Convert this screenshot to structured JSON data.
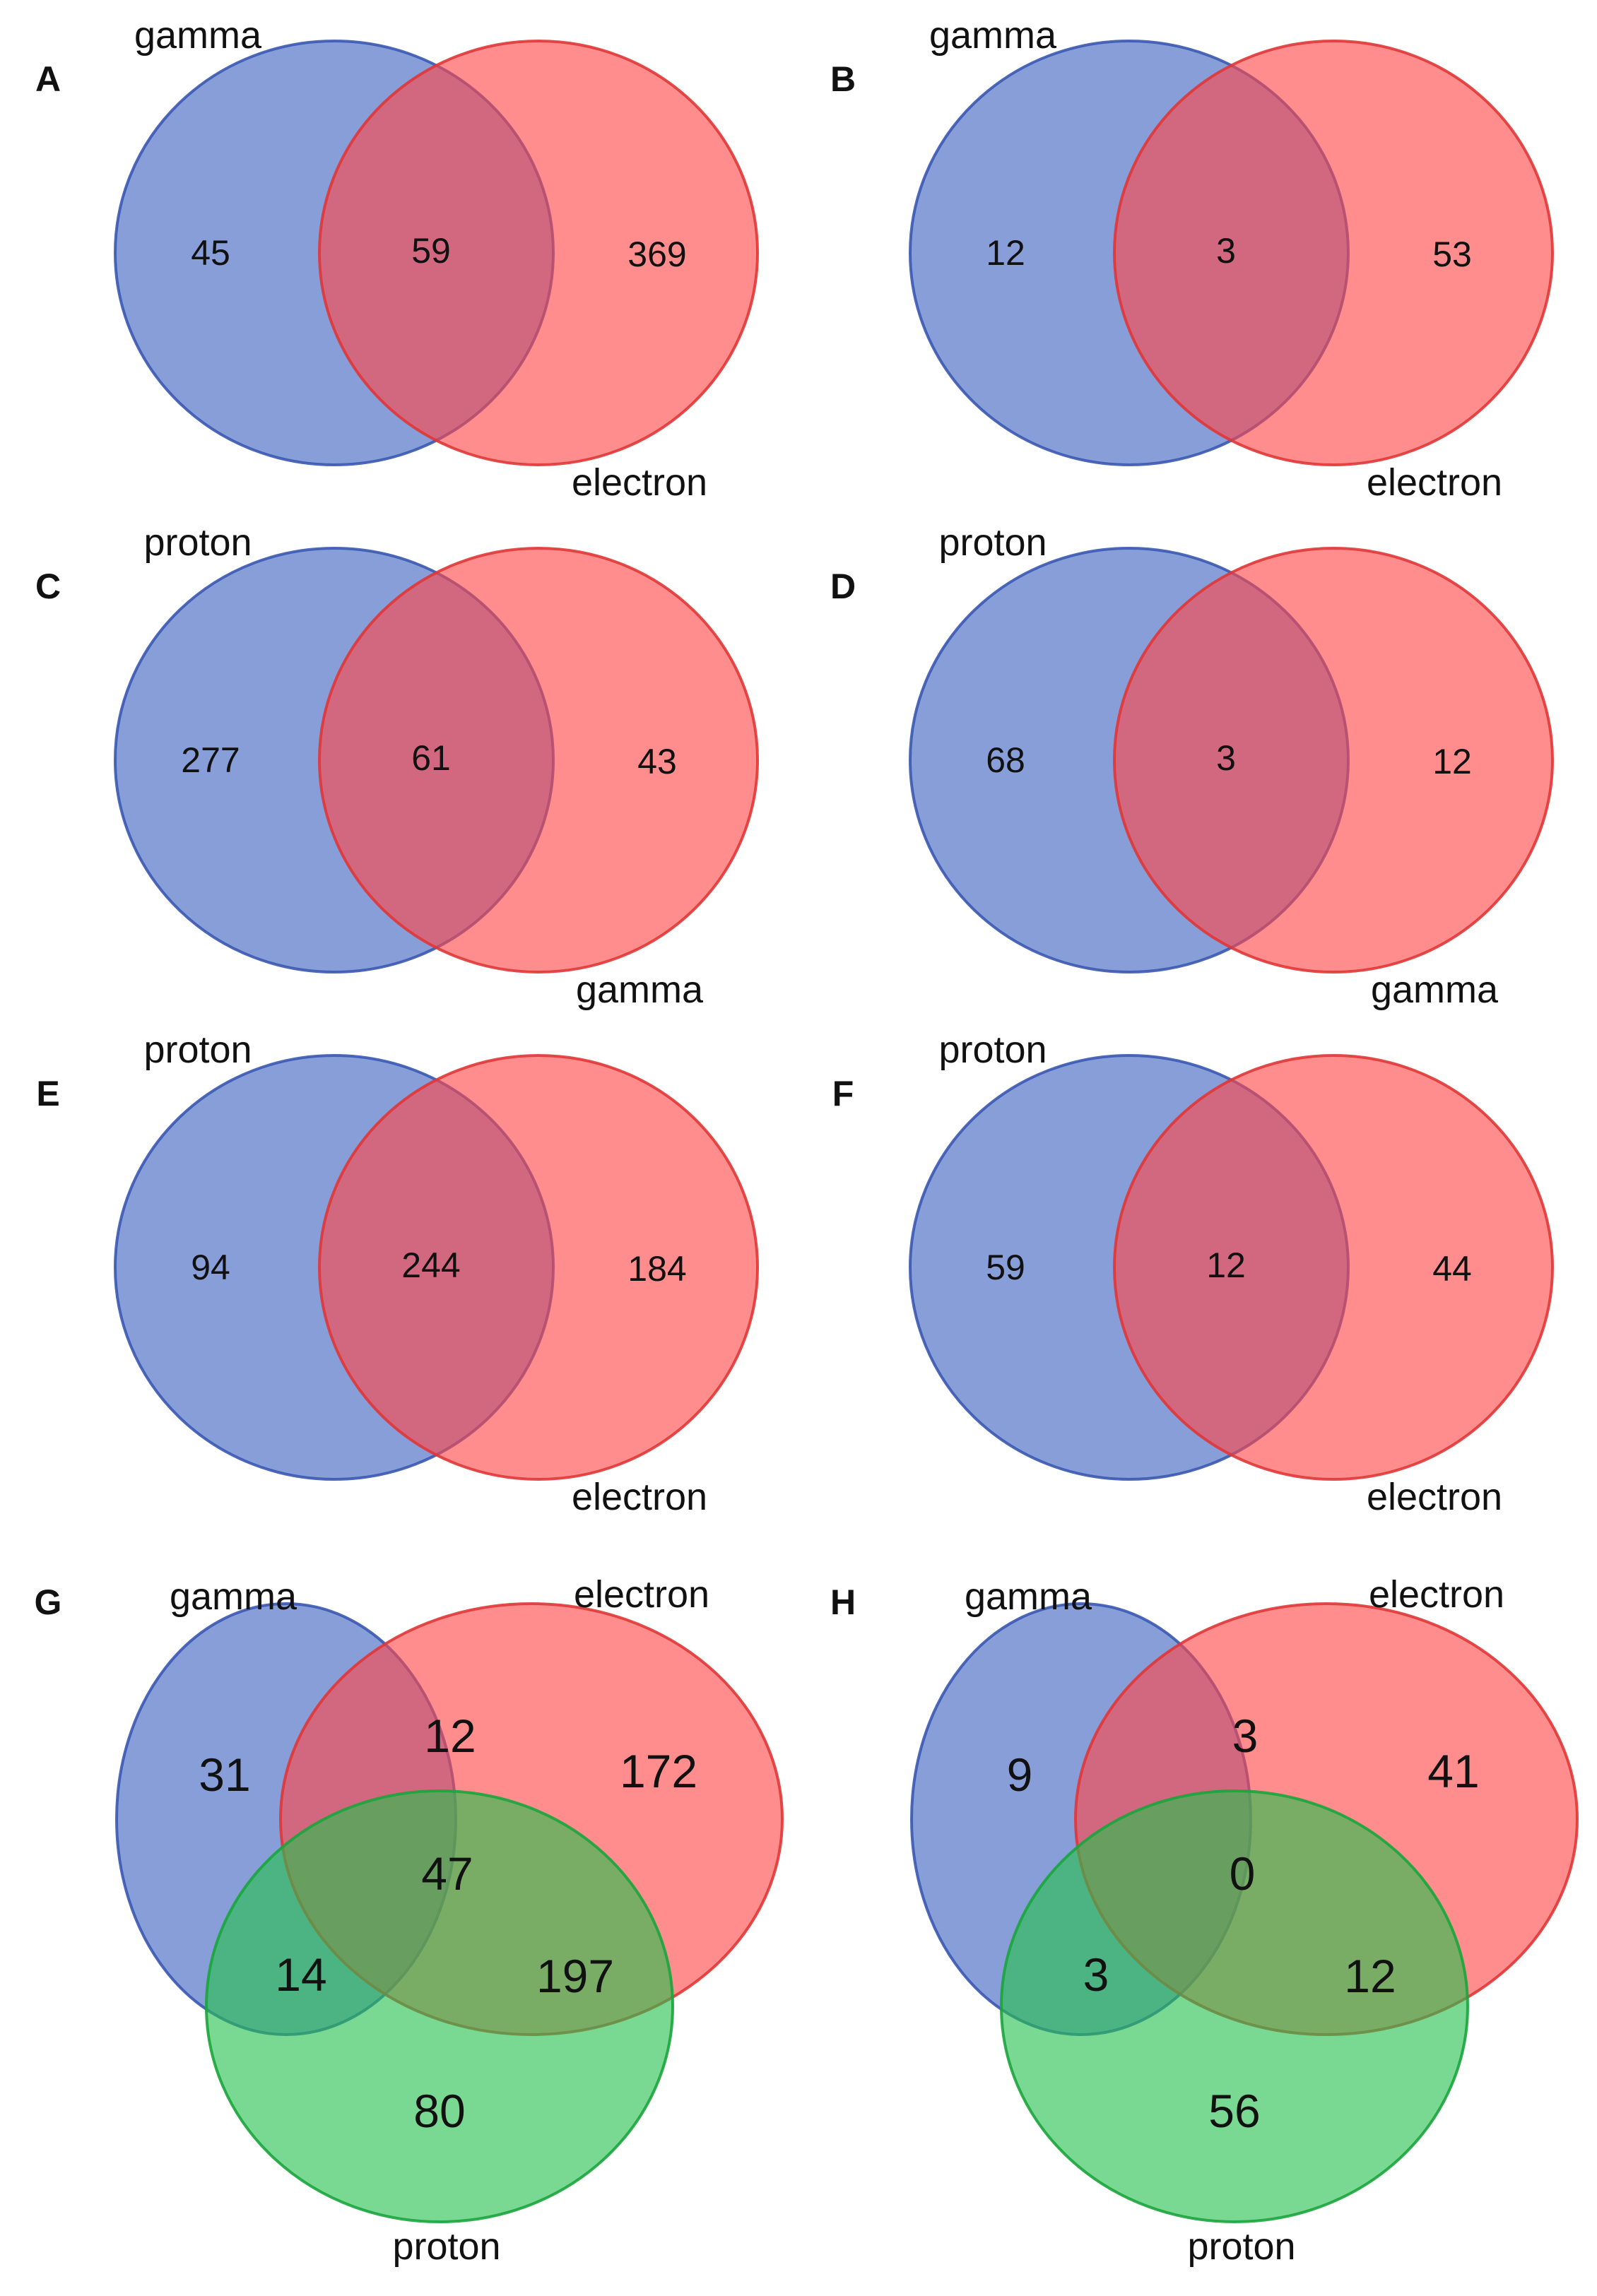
{
  "colors": {
    "blue": "#3f63c2",
    "red": "#ff4747",
    "green": "#26c04d",
    "blue_edge": "#3a58b0",
    "red_edge": "#e03636",
    "green_edge": "#1aa53c"
  },
  "panels": [
    {
      "letter": "A",
      "sets": [
        "gamma",
        "electron"
      ],
      "counts": {
        "left": "45",
        "both": "59",
        "right": "369"
      }
    },
    {
      "letter": "B",
      "sets": [
        "gamma",
        "electron"
      ],
      "counts": {
        "left": "12",
        "both": "3",
        "right": "53"
      }
    },
    {
      "letter": "C",
      "sets": [
        "proton",
        "gamma"
      ],
      "counts": {
        "left": "277",
        "both": "61",
        "right": "43"
      }
    },
    {
      "letter": "D",
      "sets": [
        "proton",
        "gamma"
      ],
      "counts": {
        "left": "68",
        "both": "3",
        "right": "12"
      }
    },
    {
      "letter": "E",
      "sets": [
        "proton",
        "electron"
      ],
      "counts": {
        "left": "94",
        "both": "244",
        "right": "184"
      }
    },
    {
      "letter": "F",
      "sets": [
        "proton",
        "electron"
      ],
      "counts": {
        "left": "59",
        "both": "12",
        "right": "44"
      }
    },
    {
      "letter": "G",
      "sets": [
        "gamma",
        "electron",
        "proton"
      ],
      "counts": {
        "gamma_only": "31",
        "gamma_electron": "12",
        "electron_only": "172",
        "all": "47",
        "gamma_proton": "14",
        "electron_proton": "197",
        "proton_only": "80"
      }
    },
    {
      "letter": "H",
      "sets": [
        "gamma",
        "electron",
        "proton"
      ],
      "counts": {
        "gamma_only": "9",
        "gamma_electron": "3",
        "electron_only": "41",
        "all": "0",
        "gamma_proton": "3",
        "electron_proton": "12",
        "proton_only": "56"
      }
    }
  ]
}
